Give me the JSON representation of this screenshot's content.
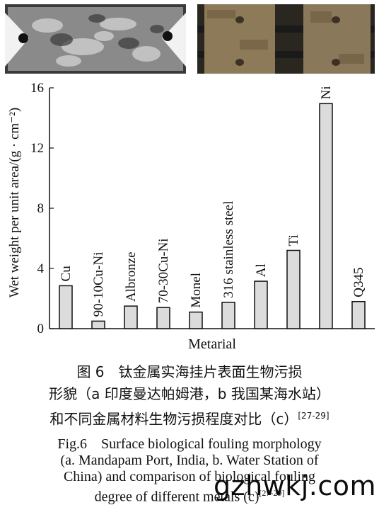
{
  "photos": [
    {
      "label": "photo-a",
      "description_icon": "titanium-plate-photo"
    },
    {
      "label": "photo-b",
      "description_icon": "brick-plate-photo"
    }
  ],
  "chart_data": {
    "type": "bar",
    "categories": [
      "Cu",
      "90-10Cu-Ni",
      "Albronze",
      "70-30Cu-Ni",
      "Monel",
      "316 stainless steel",
      "Al",
      "Ti",
      "Ni",
      "Q345"
    ],
    "values": [
      2.85,
      0.5,
      1.5,
      1.4,
      1.1,
      1.75,
      3.15,
      5.2,
      14.95,
      1.8
    ],
    "title": "",
    "xlabel": "Metarial",
    "ylabel": "Wet weight per unit area/(g · cm⁻²)",
    "ylim": [
      0,
      16
    ],
    "yticks": [
      0,
      4,
      8,
      12,
      16
    ],
    "grid": false,
    "bar_color": "#dcdcdc"
  },
  "caption": {
    "cn_line1": "图 6　钛金属实海挂片表面生物污损",
    "cn_line2": "形貌（a 印度曼达帕姆港，b 我国某海水站）",
    "cn_line3": "和不同金属材料生物污损程度对比（c）",
    "cn_ref": "[27-29]",
    "en_line1": "Fig.6　Surface biological fouling morphology",
    "en_line2": "(a. Mandapam Port, India, b. Water Station of",
    "en_line3": "China) and comparison of biological fouling",
    "en_line4": "degree of different metals (c)",
    "en_ref": "[27-29]"
  },
  "watermark": "gzhwkj.com"
}
